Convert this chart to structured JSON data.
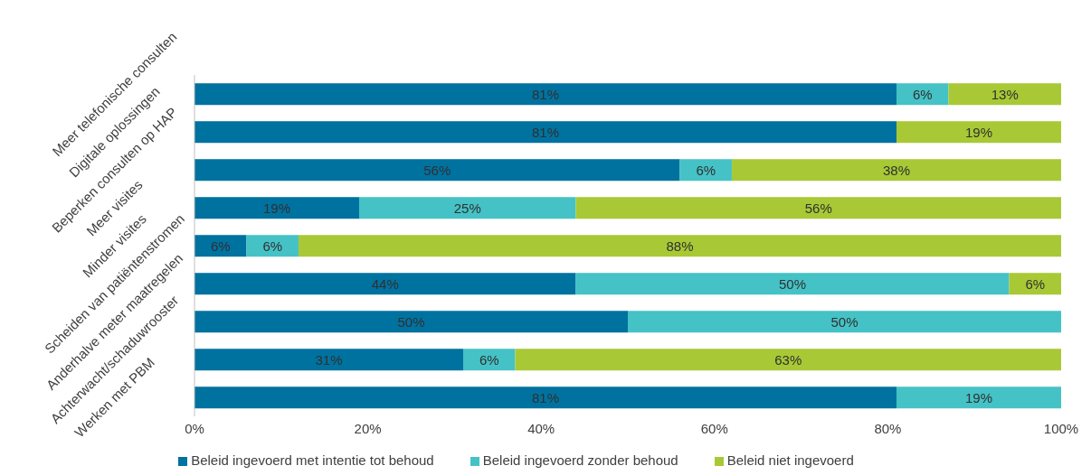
{
  "chart_data": {
    "type": "bar",
    "orientation": "horizontal",
    "stacked": true,
    "categories": [
      "Meer telefonische consulten",
      "Digitale oplossingen",
      "Beperken consulten op HAP",
      "Meer visites",
      "Minder visites",
      "Scheiden van patiëntenstromen",
      "Anderhalve meter maatregelen",
      "Achterwacht/schaduwrooster",
      "Werken met PBM"
    ],
    "series": [
      {
        "name": "Beleid ingevoerd met intentie tot behoud",
        "color": "#0072a0",
        "values": [
          81,
          81,
          56,
          19,
          6,
          44,
          50,
          31,
          81
        ],
        "value_labels": [
          "81%",
          "81%",
          "56%",
          "19%",
          "6%",
          "44%",
          "50%",
          "31%",
          "81%"
        ]
      },
      {
        "name": "Beleid ingevoerd zonder behoud",
        "color": "#45c2c6",
        "values": [
          6,
          null,
          6,
          25,
          6,
          50,
          50,
          6,
          19
        ],
        "value_labels": [
          "6%",
          null,
          "6%",
          "25%",
          "6%",
          "50%",
          "50%",
          "6%",
          "19%"
        ]
      },
      {
        "name": "Beleid niet ingevoerd",
        "color": "#a8c935",
        "values": [
          13,
          19,
          38,
          56,
          88,
          6,
          null,
          63,
          null
        ],
        "value_labels": [
          "13%",
          "19%",
          "38%",
          "56%",
          "88%",
          "6%",
          null,
          "63%",
          null
        ]
      }
    ],
    "xlim": [
      0,
      100
    ],
    "xticks": [
      {
        "value": 0,
        "label": "0%"
      },
      {
        "value": 20,
        "label": "20%"
      },
      {
        "value": 40,
        "label": "40%"
      },
      {
        "value": 60,
        "label": "60%"
      },
      {
        "value": 80,
        "label": "80%"
      },
      {
        "value": 100,
        "label": "100%"
      }
    ],
    "grid": false,
    "legend": "bottom"
  }
}
